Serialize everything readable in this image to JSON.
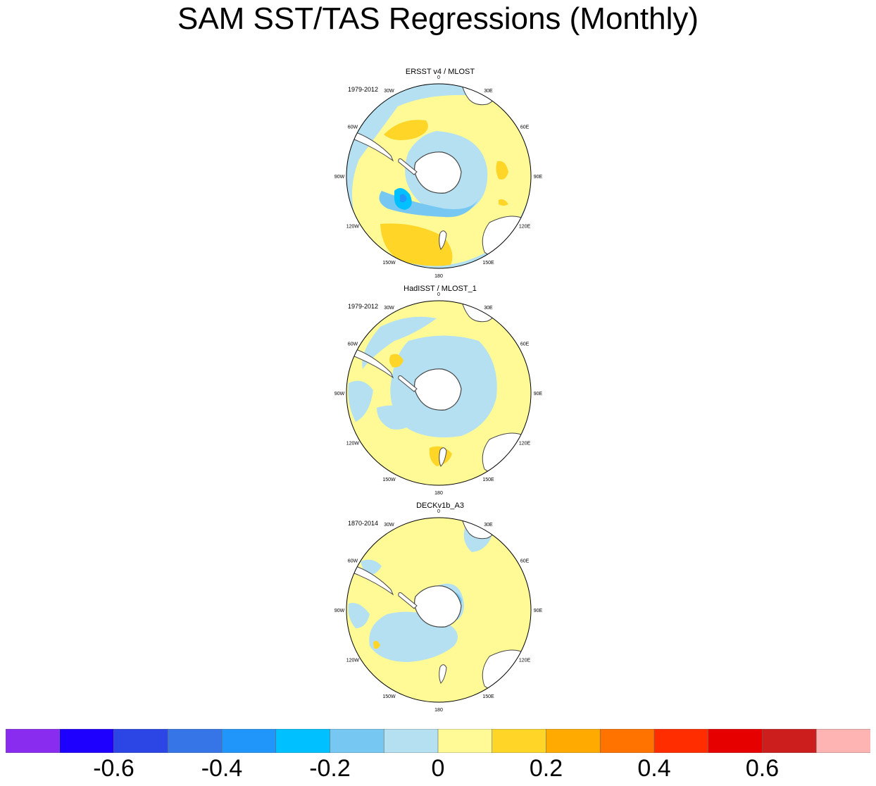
{
  "title": "SAM SST/TAS Regressions (Monthly)",
  "chart_data": {
    "type": "heatmap",
    "projection": "south polar stereographic",
    "title": "SAM SST/TAS Regressions (Monthly)",
    "longitude_labels": [
      "0",
      "30E",
      "60E",
      "90E",
      "120E",
      "150E",
      "180",
      "150W",
      "120W",
      "90W",
      "60W",
      "30W"
    ],
    "panels": [
      {
        "name": "ERSST v4 / MLOST",
        "period": "1979-2012"
      },
      {
        "name": "HadISST / MLOST_1",
        "period": "1979-2012"
      },
      {
        "name": "DECKv1b_A3",
        "period": "1870-2014"
      }
    ],
    "colorbar": {
      "levels": [
        -0.7,
        -0.6,
        -0.5,
        -0.4,
        -0.3,
        -0.2,
        -0.1,
        0,
        0.1,
        0.2,
        0.3,
        0.4,
        0.5,
        0.6,
        0.7
      ],
      "colors": [
        "#8a2cf0",
        "#1e00ff",
        "#2c46e6",
        "#3575e8",
        "#2196fa",
        "#00c0ff",
        "#76c8f2",
        "#b4e0f2",
        "#fffa96",
        "#ffd628",
        "#ffaa00",
        "#ff7300",
        "#ff2d00",
        "#e60000",
        "#cd1e1e",
        "#ffb4b4"
      ],
      "tick_labels": [
        "-0.6",
        "-0.4",
        "-0.2",
        "0",
        "0.2",
        "0.4",
        "0.6"
      ],
      "tick_values": [
        -0.6,
        -0.4,
        -0.2,
        0,
        0.2,
        0.4,
        0.6
      ],
      "range": [
        -0.8,
        0.8
      ]
    }
  }
}
